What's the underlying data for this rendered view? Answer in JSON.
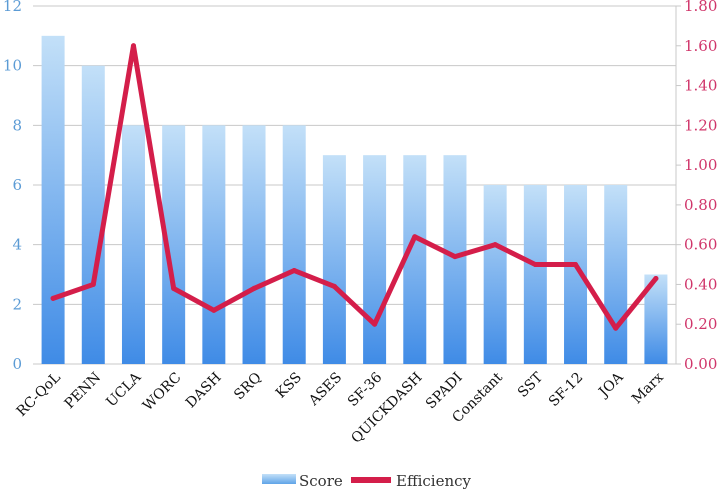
{
  "chart_data": {
    "type": "bar",
    "categories": [
      "RC-QoL",
      "PENN",
      "UCLA",
      "WORC",
      "DASH",
      "SRQ",
      "KSS",
      "ASES",
      "SF-36",
      "QUICKDASH",
      "SPADI",
      "Constant",
      "SST",
      "SF-12",
      "JOA",
      "Marx"
    ],
    "series": [
      {
        "name": "Score",
        "type": "bar",
        "axis": "left",
        "color": "#5fa4e8",
        "values": [
          11,
          10,
          8,
          8,
          8,
          8,
          8,
          7,
          7,
          7,
          7,
          6,
          6,
          6,
          6,
          3
        ]
      },
      {
        "name": "Efficiency",
        "type": "line",
        "axis": "right",
        "color": "#d41e4a",
        "values": [
          0.33,
          0.4,
          1.6,
          0.38,
          0.27,
          0.38,
          0.47,
          0.39,
          0.2,
          0.64,
          0.54,
          0.6,
          0.5,
          0.5,
          0.18,
          0.43
        ]
      }
    ],
    "y_left": {
      "ylim": [
        0,
        12
      ],
      "ticks": [
        "0",
        "2",
        "4",
        "6",
        "8",
        "10",
        "12"
      ]
    },
    "y_right": {
      "ylim": [
        0,
        1.8
      ],
      "ticks": [
        "0.00",
        "0.20",
        "0.40",
        "0.60",
        "0.80",
        "1.00",
        "1.20",
        "1.40",
        "1.60",
        "1.80"
      ]
    },
    "grid": true,
    "legend": {
      "position": "bottom",
      "entries": [
        "Score",
        "Efficiency"
      ]
    }
  }
}
